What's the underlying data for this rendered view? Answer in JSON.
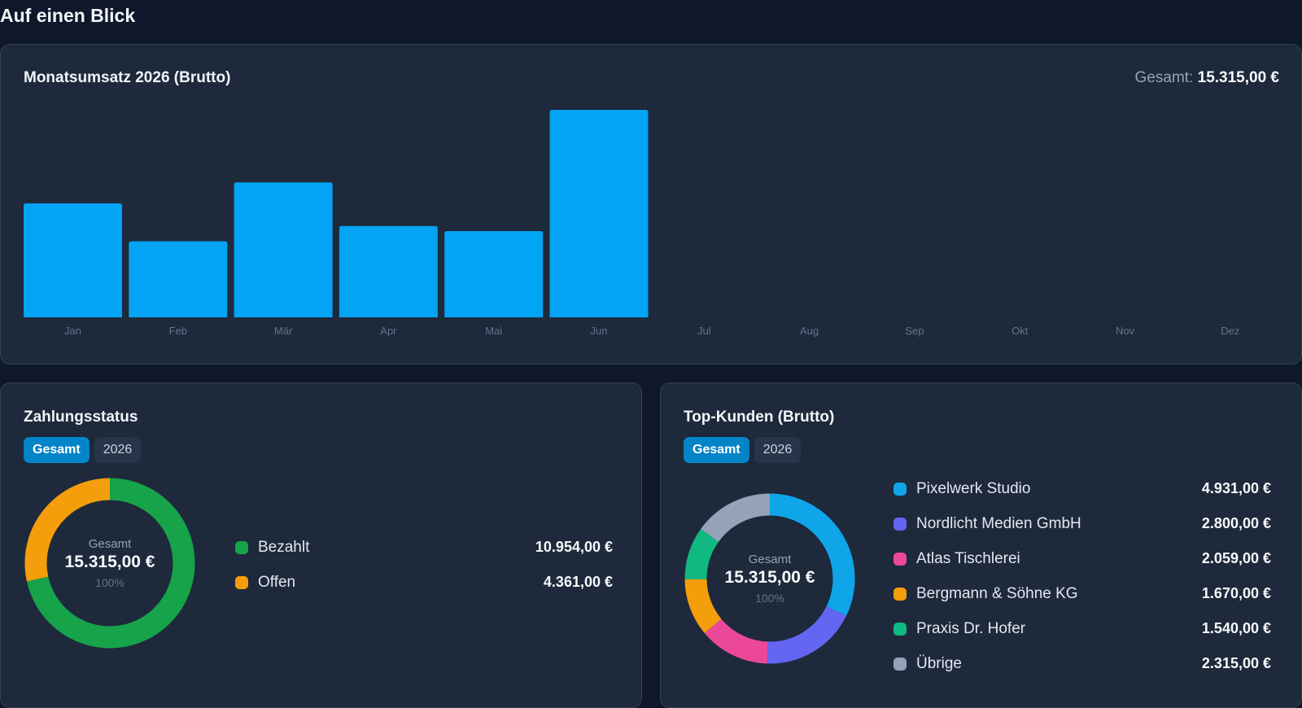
{
  "page": {
    "title": "Auf einen Blick"
  },
  "revenue": {
    "title": "Monatsumsatz 2026 (Brutto)",
    "total_label": "Gesamt:",
    "total_value": "15.315,00 €"
  },
  "chart_data": {
    "type": "bar",
    "categories": [
      "Jan",
      "Feb",
      "Mär",
      "Apr",
      "Mai",
      "Jun",
      "Jul",
      "Aug",
      "Sep",
      "Okt",
      "Nov",
      "Dez"
    ],
    "values": [
      2460,
      1640,
      2910,
      1970,
      1860,
      4475,
      0,
      0,
      0,
      0,
      0,
      0
    ],
    "title": "Monatsumsatz 2026 (Brutto)",
    "xlabel": "",
    "ylabel": "",
    "ylim": [
      0,
      4475
    ],
    "color": "#03a4f4",
    "grid": false
  },
  "payment": {
    "title": "Zahlungsstatus",
    "tabs": [
      "Gesamt",
      "2026"
    ],
    "active_tab": 0,
    "center_label": "Gesamt",
    "center_value": "15.315,00 €",
    "center_pct": "100%",
    "items": [
      {
        "name": "Bezahlt",
        "value": "10.954,00 €",
        "amount": 10954,
        "color": "#16a34a"
      },
      {
        "name": "Offen",
        "value": "4.361,00 €",
        "amount": 4361,
        "color": "#f59e0b"
      }
    ]
  },
  "customers": {
    "title": "Top-Kunden (Brutto)",
    "tabs": [
      "Gesamt",
      "2026"
    ],
    "active_tab": 0,
    "center_label": "Gesamt",
    "center_value": "15.315,00 €",
    "center_pct": "100%",
    "items": [
      {
        "name": "Pixelwerk Studio",
        "value": "4.931,00 €",
        "amount": 4931,
        "color": "#0ea5e9"
      },
      {
        "name": "Nordlicht Medien GmbH",
        "value": "2.800,00 €",
        "amount": 2800,
        "color": "#6366f1"
      },
      {
        "name": "Atlas Tischlerei",
        "value": "2.059,00 €",
        "amount": 2059,
        "color": "#ec4899"
      },
      {
        "name": "Bergmann & Söhne KG",
        "value": "1.670,00 €",
        "amount": 1670,
        "color": "#f59e0b"
      },
      {
        "name": "Praxis Dr. Hofer",
        "value": "1.540,00 €",
        "amount": 1540,
        "color": "#10b981"
      },
      {
        "name": "Übrige",
        "value": "2.315,00 €",
        "amount": 2315,
        "color": "#94a3b8"
      }
    ]
  }
}
